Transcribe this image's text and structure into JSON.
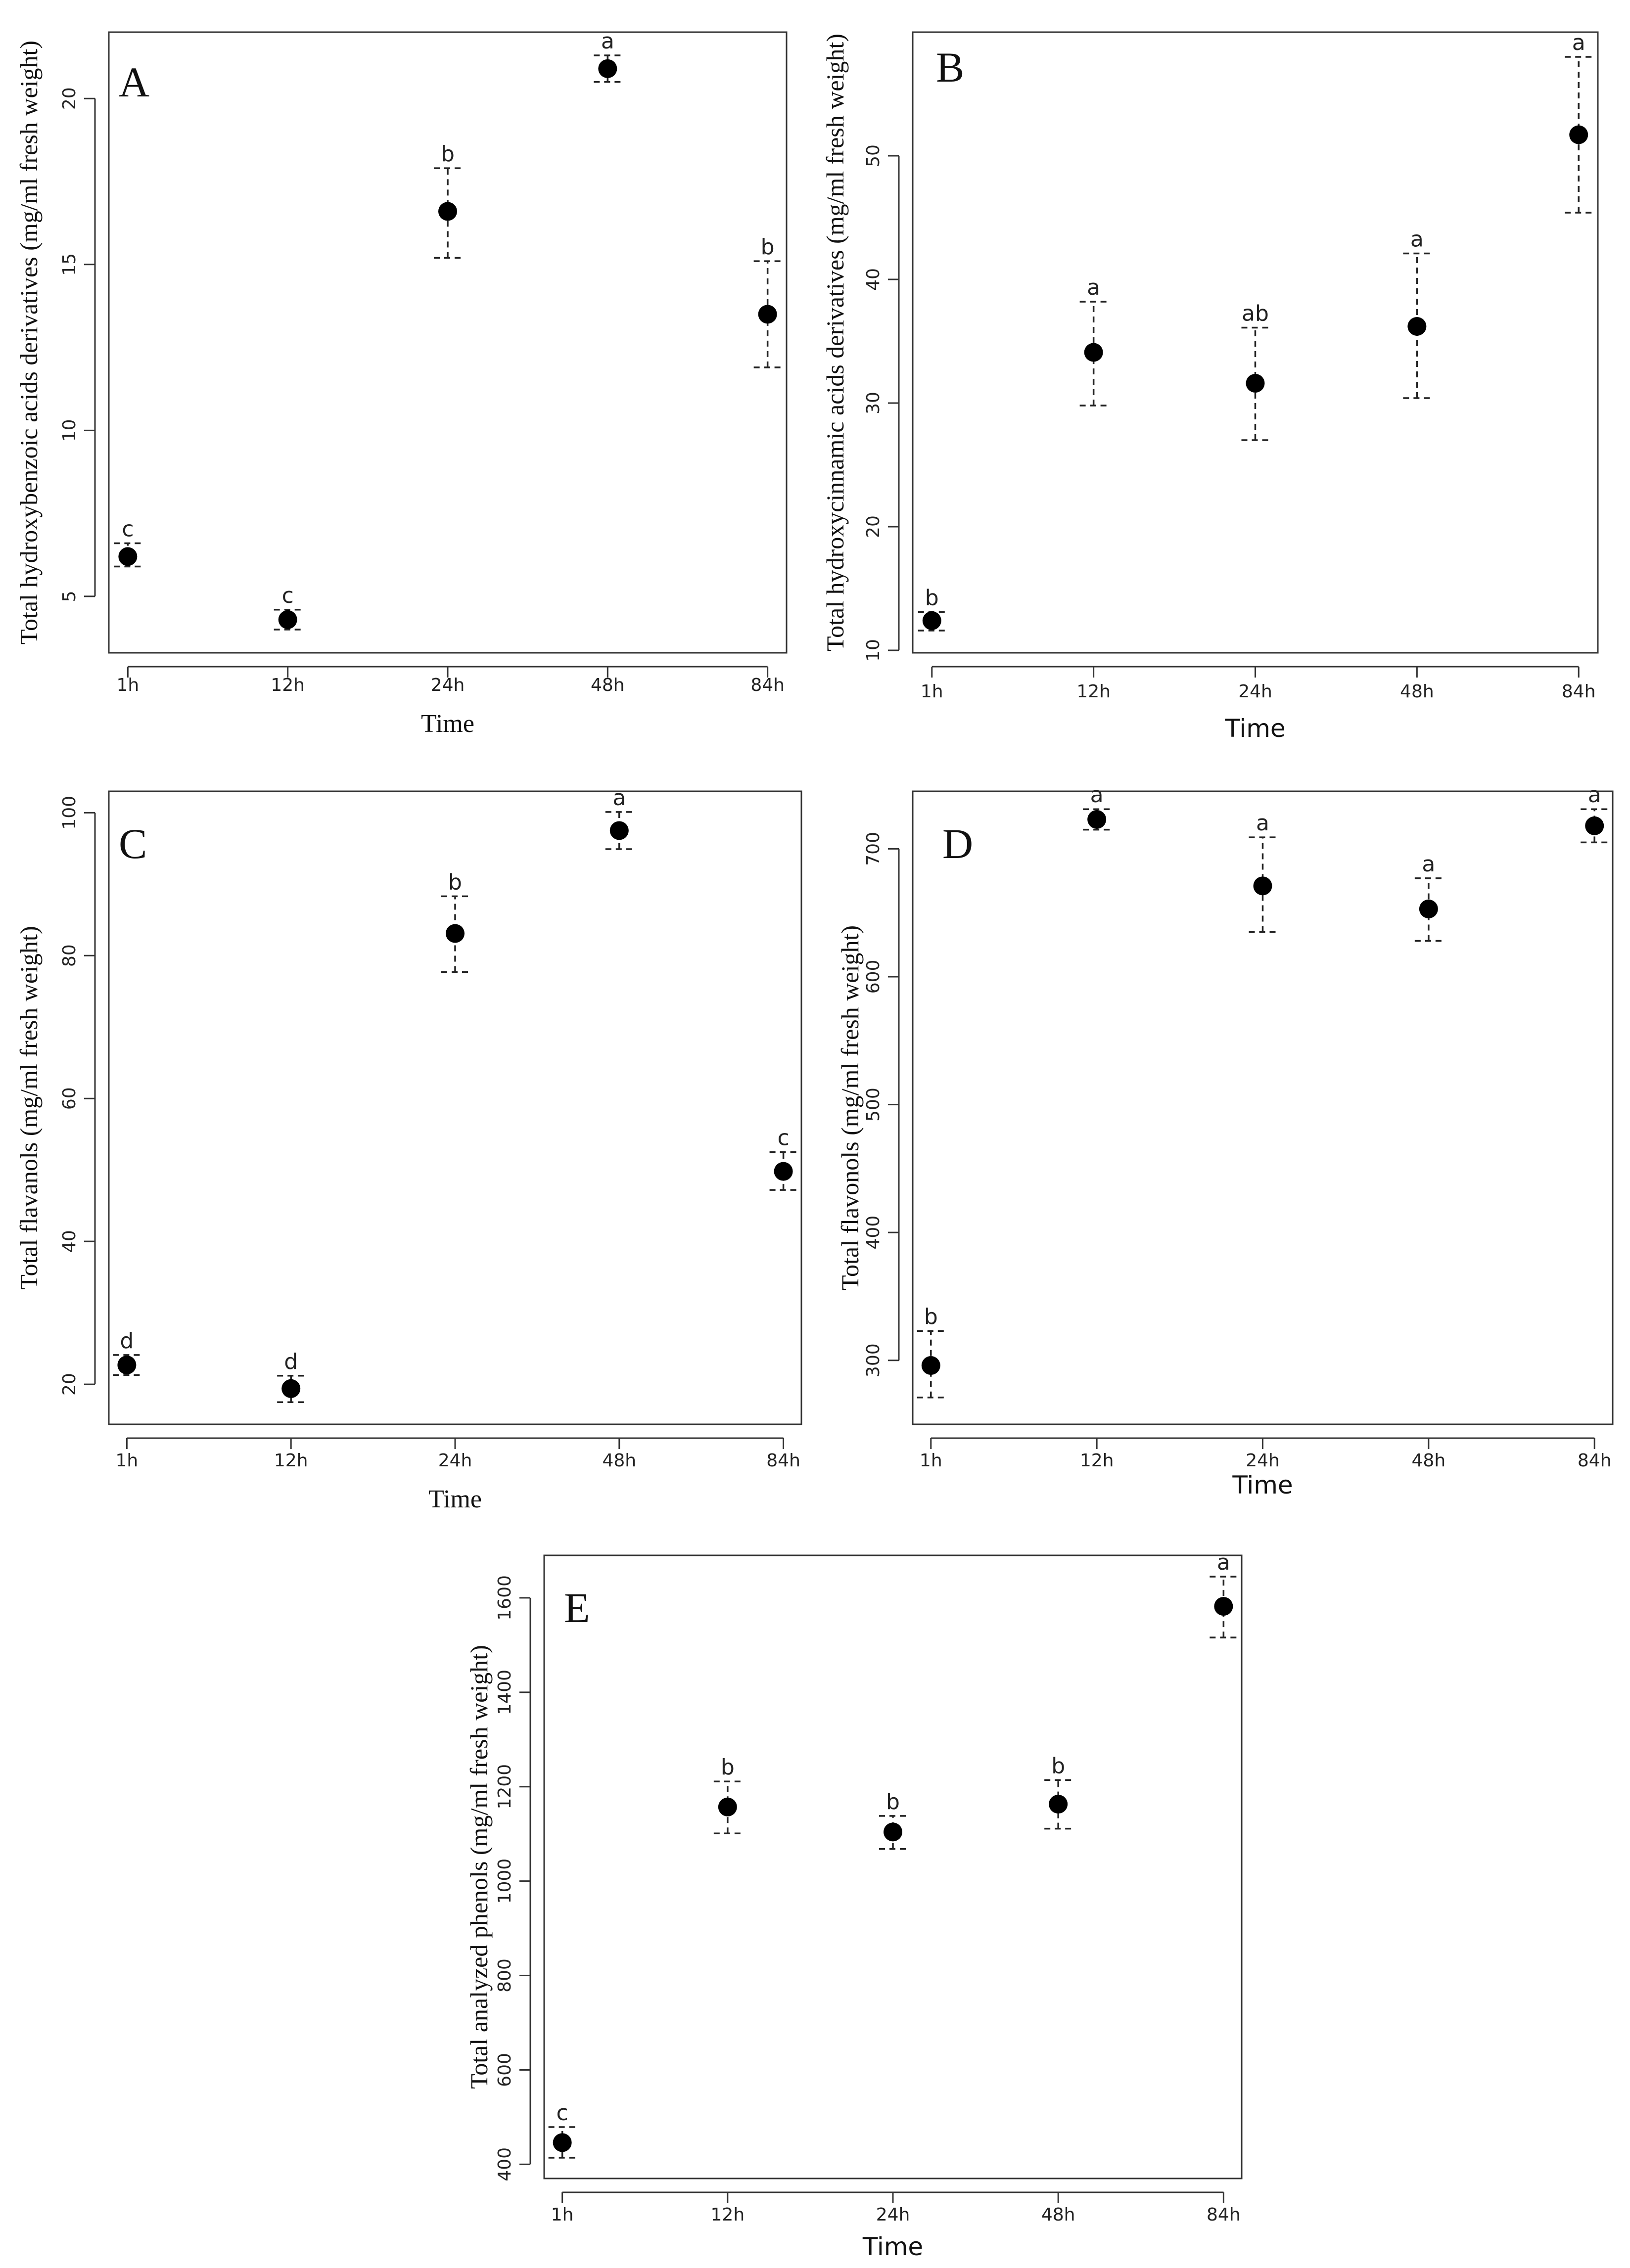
{
  "chart_data": [
    {
      "panel": "A",
      "type": "scatter",
      "categories": [
        "1h",
        "12h",
        "24h",
        "48h",
        "84h"
      ],
      "xlabel": "Time",
      "ylabel": "Total hydroxybenzoic acids derivatives (mg/ml fresh weight)",
      "ylim": [
        3.3,
        22.0
      ],
      "yticks": [
        5,
        10,
        15,
        20
      ],
      "values": [
        6.2,
        4.3,
        16.6,
        20.9,
        13.5
      ],
      "err_low": [
        5.9,
        4.0,
        15.2,
        20.5,
        11.9
      ],
      "err_high": [
        6.6,
        4.6,
        17.9,
        21.3,
        15.1
      ],
      "letters": [
        "c",
        "c",
        "b",
        "a",
        "b"
      ]
    },
    {
      "panel": "B",
      "type": "scatter",
      "categories": [
        "1h",
        "12h",
        "24h",
        "48h",
        "84h"
      ],
      "xlabel": "Time",
      "ylabel": "Total hydroxycinnamic acids derivatives (mg/ml fresh weight)",
      "ylim": [
        9.8,
        60.0
      ],
      "yticks": [
        10,
        20,
        30,
        40,
        50
      ],
      "values": [
        12.4,
        34.1,
        31.6,
        36.2,
        51.7
      ],
      "err_low": [
        11.6,
        29.8,
        27.0,
        30.4,
        45.4
      ],
      "err_high": [
        13.1,
        38.2,
        36.1,
        42.1,
        58.0
      ],
      "letters": [
        "b",
        "a",
        "ab",
        "a",
        "a"
      ]
    },
    {
      "panel": "C",
      "type": "scatter",
      "categories": [
        "1h",
        "12h",
        "24h",
        "48h",
        "84h"
      ],
      "xlabel": "Time",
      "ylabel": "Total flavanols (mg/ml fresh weight)",
      "ylim": [
        14.4,
        103.0
      ],
      "yticks": [
        20,
        40,
        60,
        80,
        100
      ],
      "values": [
        22.7,
        19.4,
        83.1,
        97.5,
        49.8
      ],
      "err_low": [
        21.3,
        17.5,
        77.7,
        94.9,
        47.2
      ],
      "err_high": [
        24.1,
        21.2,
        88.3,
        100.1,
        52.5
      ],
      "letters": [
        "d",
        "d",
        "b",
        "a",
        "c"
      ]
    },
    {
      "panel": "D",
      "type": "scatter",
      "categories": [
        "1h",
        "12h",
        "24h",
        "48h",
        "84h"
      ],
      "xlabel": "Time",
      "ylabel": "Total flavonols (mg/ml fresh weight)",
      "ylim": [
        250,
        745
      ],
      "yticks": [
        300,
        400,
        500,
        600,
        700
      ],
      "values": [
        296,
        723,
        671,
        653,
        718
      ],
      "err_low": [
        271,
        715,
        635,
        628,
        705
      ],
      "err_high": [
        323,
        731,
        709,
        677,
        731
      ],
      "letters": [
        "b",
        "a",
        "a",
        "a",
        "a"
      ]
    },
    {
      "panel": "E",
      "type": "scatter",
      "categories": [
        "1h",
        "12h",
        "24h",
        "48h",
        "84h"
      ],
      "xlabel": "Time",
      "ylabel": "Total analyzed phenols (mg/ml fresh weight)",
      "ylim": [
        370,
        1690
      ],
      "yticks": [
        400,
        600,
        800,
        1000,
        1200,
        1400,
        1600
      ],
      "values": [
        446,
        1157,
        1104,
        1163,
        1582
      ],
      "err_low": [
        414,
        1101,
        1068,
        1111,
        1516
      ],
      "err_high": [
        479,
        1211,
        1138,
        1214,
        1645
      ],
      "letters": [
        "c",
        "b",
        "b",
        "b",
        "a"
      ]
    }
  ]
}
